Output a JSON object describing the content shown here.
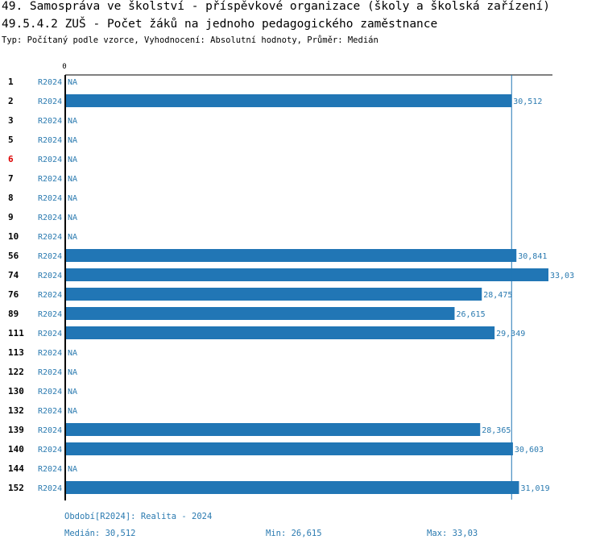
{
  "header": {
    "title": "49. Samospráva ve školství - příspěvkové organizace (školy a školská zařízení)",
    "subtitle": "49.5.4.2 ZUŠ - Počet žáků na jednoho pedagogického zaměstnance",
    "meta": "Typ: Počítaný podle vzorce, Vyhodnocení: Absolutní hodnoty, Průměr: Medián"
  },
  "chart_data": {
    "type": "bar",
    "orientation": "horizontal",
    "axis_zero_label": "0",
    "period_label": "R2024",
    "na_label": "NA",
    "xlim": [
      0,
      33.03
    ],
    "median": 30.512,
    "rows": [
      {
        "id": "1",
        "value": null,
        "label": "NA",
        "highlight": false
      },
      {
        "id": "2",
        "value": 30.512,
        "label": "30,512",
        "highlight": false
      },
      {
        "id": "3",
        "value": null,
        "label": "NA",
        "highlight": false
      },
      {
        "id": "5",
        "value": null,
        "label": "NA",
        "highlight": false
      },
      {
        "id": "6",
        "value": null,
        "label": "NA",
        "highlight": true
      },
      {
        "id": "7",
        "value": null,
        "label": "NA",
        "highlight": false
      },
      {
        "id": "8",
        "value": null,
        "label": "NA",
        "highlight": false
      },
      {
        "id": "9",
        "value": null,
        "label": "NA",
        "highlight": false
      },
      {
        "id": "10",
        "value": null,
        "label": "NA",
        "highlight": false
      },
      {
        "id": "56",
        "value": 30.841,
        "label": "30,841",
        "highlight": false
      },
      {
        "id": "74",
        "value": 33.03,
        "label": "33,03",
        "highlight": false
      },
      {
        "id": "76",
        "value": 28.475,
        "label": "28,475",
        "highlight": false
      },
      {
        "id": "89",
        "value": 26.615,
        "label": "26,615",
        "highlight": false
      },
      {
        "id": "111",
        "value": 29.349,
        "label": "29,349",
        "highlight": false
      },
      {
        "id": "113",
        "value": null,
        "label": "NA",
        "highlight": false
      },
      {
        "id": "122",
        "value": null,
        "label": "NA",
        "highlight": false
      },
      {
        "id": "130",
        "value": null,
        "label": "NA",
        "highlight": false
      },
      {
        "id": "132",
        "value": null,
        "label": "NA",
        "highlight": false
      },
      {
        "id": "139",
        "value": 28.365,
        "label": "28,365",
        "highlight": false
      },
      {
        "id": "140",
        "value": 30.603,
        "label": "30,603",
        "highlight": false
      },
      {
        "id": "144",
        "value": null,
        "label": "NA",
        "highlight": false
      },
      {
        "id": "152",
        "value": 31.019,
        "label": "31,019",
        "highlight": false
      }
    ],
    "colors": {
      "bar": "#2176b5",
      "median_line": "#2176b5",
      "value_text": "#2a7ab0",
      "highlight_text": "#dd0000",
      "axis": "#000000"
    }
  },
  "footer": {
    "period": "Období[R2024]: Realita - 2024",
    "median": "Medián: 30,512",
    "min": "Min: 26,615",
    "max": "Max: 33,03"
  }
}
